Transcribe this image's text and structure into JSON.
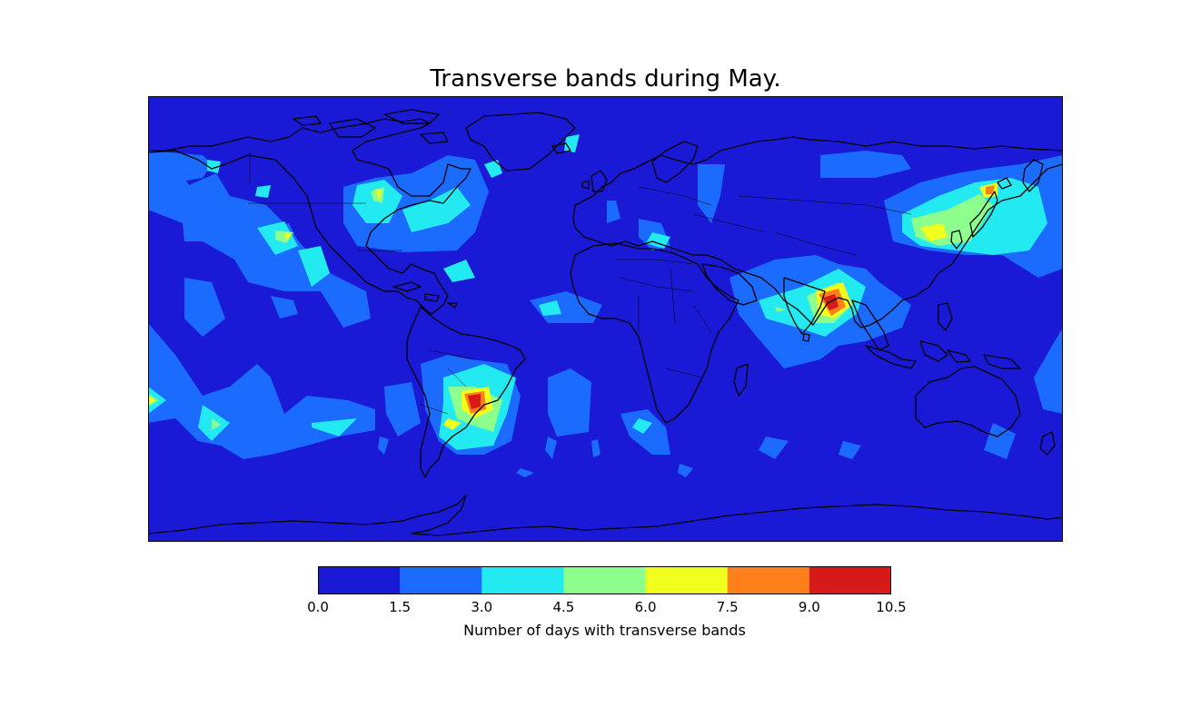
{
  "chart_data": {
    "type": "heatmap",
    "title": "Transverse bands during May.",
    "projection": "equirectangular world map",
    "colorbar": {
      "label": "Number of days with transverse bands",
      "orientation": "horizontal",
      "ticks": [
        "0.0",
        "1.5",
        "3.0",
        "4.5",
        "6.0",
        "7.5",
        "9.0",
        "10.5"
      ],
      "levels": [
        0.0,
        1.5,
        3.0,
        4.5,
        6.0,
        7.5,
        9.0,
        10.5
      ],
      "colors": [
        "#1a1ad6",
        "#1b6bff",
        "#22eaf0",
        "#8cff8c",
        "#f0ff1e",
        "#ff801a",
        "#d61a1a"
      ]
    },
    "hotspots": [
      {
        "region": "Bay of Bengal / India",
        "max_value": 10.5
      },
      {
        "region": "Northern Argentina / Southern Brazil",
        "max_value": 10.5
      },
      {
        "region": "Japan / Sea of Japan / Northeast China",
        "max_value": 7.5
      },
      {
        "region": "Eastern North America / Great Lakes",
        "max_value": 6.0
      },
      {
        "region": "Central North Pacific",
        "max_value": 6.0
      },
      {
        "region": "South Pacific",
        "max_value": 6.0
      },
      {
        "region": "Arabian Sea",
        "max_value": 4.5
      },
      {
        "region": "Southern Indian Ocean",
        "max_value": 4.5
      }
    ]
  }
}
